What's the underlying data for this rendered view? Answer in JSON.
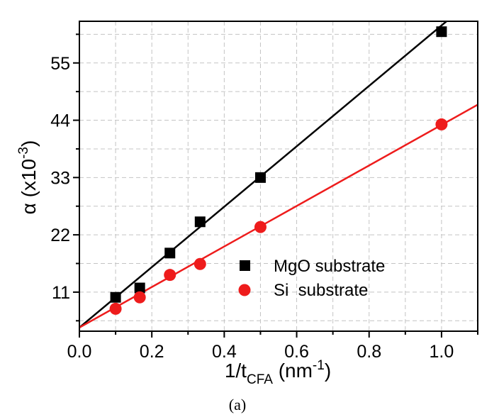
{
  "chart_data": {
    "type": "scatter",
    "xlabel": {
      "main": "1/t",
      "sub": "CFA",
      "unit_open": " (nm",
      "unit_sup": "-1",
      "unit_close": ")"
    },
    "ylabel": {
      "main": "α (x10",
      "sup": "-3",
      "close": ")"
    },
    "xlim": [
      0.0,
      1.1
    ],
    "ylim": [
      3.5,
      63
    ],
    "x_ticks": [
      0.0,
      0.2,
      0.4,
      0.6,
      0.8,
      1.0
    ],
    "x_tick_labels": [
      "0.0",
      "0.2",
      "0.4",
      "0.6",
      "0.8",
      "1.0"
    ],
    "y_ticks": [
      11,
      22,
      33,
      44,
      55
    ],
    "y_tick_labels": [
      "11",
      "22",
      "33",
      "44",
      "55"
    ],
    "grid": true,
    "legend_position": "lower-right",
    "series": [
      {
        "name": "MgO substrate",
        "marker": "square",
        "color": "#000000",
        "x": [
          0.1,
          0.1667,
          0.25,
          0.3333,
          0.5,
          1.0
        ],
        "y": [
          10.0,
          11.8,
          18.5,
          24.5,
          33.0,
          61.0
        ],
        "fit": {
          "intercept": 4.2,
          "slope": 58.0
        }
      },
      {
        "name": "Si  substrate",
        "marker": "circle",
        "color": "#ee1c1c",
        "x": [
          0.1,
          0.1667,
          0.25,
          0.3333,
          0.5,
          1.0
        ],
        "y": [
          7.8,
          10.0,
          14.3,
          16.4,
          23.5,
          43.2
        ],
        "fit": {
          "intercept": 4.2,
          "slope": 38.9
        }
      }
    ]
  },
  "caption": "(a)"
}
